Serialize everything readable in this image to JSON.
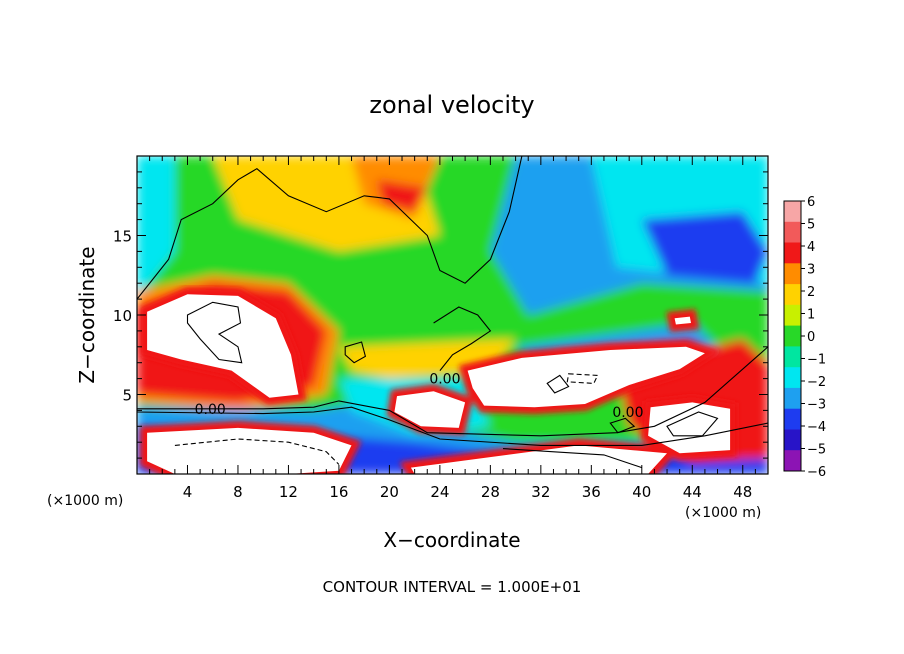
{
  "chart_data": {
    "type": "heatmap",
    "title": "zonal velocity",
    "xlabel": "X−coordinate",
    "ylabel": "Z−coordinate",
    "x_unit_left": "(×1000 m)",
    "x_unit_right": "(×1000 m)",
    "footer": "CONTOUR INTERVAL = 1.000E+01",
    "xlim": [
      0,
      50
    ],
    "ylim": [
      0,
      20
    ],
    "x_ticks": [
      4,
      8,
      12,
      16,
      20,
      24,
      28,
      32,
      36,
      40,
      44,
      48
    ],
    "y_ticks": [
      5,
      10,
      15
    ],
    "contour_labels": [
      {
        "text": "0.00",
        "x": 5.8,
        "y": 4.1
      },
      {
        "text": "0.00",
        "x": 24.4,
        "y": 6.0
      },
      {
        "text": "0.00",
        "x": 38.9,
        "y": 3.9
      }
    ],
    "colorbar": {
      "levels": [
        6,
        5,
        4,
        3,
        2,
        1,
        0,
        -1,
        -2,
        -3,
        -4,
        -5,
        -6
      ],
      "labels": [
        "6",
        "5",
        "4",
        "3",
        "2",
        "1",
        "0",
        "−1",
        "−2",
        "−3",
        "−4",
        "−5",
        "−6"
      ],
      "colors": [
        "#f7a6a6",
        "#f25a5a",
        "#f01818",
        "#ff8c00",
        "#ffd200",
        "#c8f000",
        "#28d828",
        "#00e6a0",
        "#00e6f0",
        "#1ea0f0",
        "#1e3cf0",
        "#2814c8",
        "#8c14b4"
      ]
    },
    "colors": {
      "pos_strong": "#f01818",
      "pos_mid": "#ff8c00",
      "pos_weak": "#ffd200",
      "zero": "#28d828",
      "neg_weak": "#00e6f0",
      "neg_mid": "#1ea0f0",
      "neg_strong": "#1e3cf0",
      "neg_max": "#8c14b4",
      "over": "#ffffff"
    }
  }
}
